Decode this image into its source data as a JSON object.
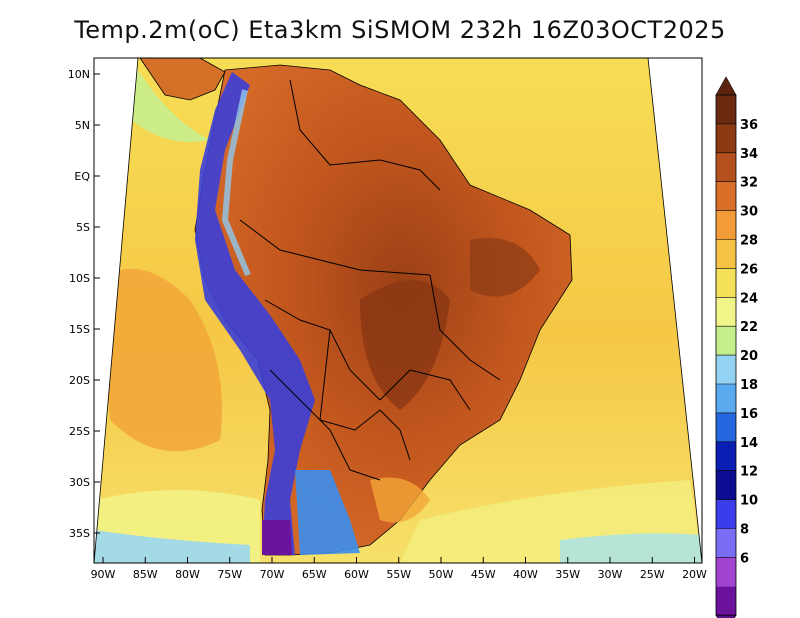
{
  "title": "Temp.2m(oC) Eta3km SiSMOM 232h 16Z03OCT2025",
  "variable": "2m temperature",
  "units": "oC",
  "lat_ticks": [
    {
      "label": "10N",
      "lat": 10
    },
    {
      "label": "5N",
      "lat": 5
    },
    {
      "label": "EQ",
      "lat": 0
    },
    {
      "label": "5S",
      "lat": -5
    },
    {
      "label": "10S",
      "lat": -10
    },
    {
      "label": "15S",
      "lat": -15
    },
    {
      "label": "20S",
      "lat": -20
    },
    {
      "label": "25S",
      "lat": -25
    },
    {
      "label": "30S",
      "lat": -30
    },
    {
      "label": "35S",
      "lat": -35
    }
  ],
  "lon_ticks": [
    {
      "label": "90W",
      "lon": -90
    },
    {
      "label": "85W",
      "lon": -85
    },
    {
      "label": "80W",
      "lon": -80
    },
    {
      "label": "75W",
      "lon": -75
    },
    {
      "label": "70W",
      "lon": -70
    },
    {
      "label": "65W",
      "lon": -65
    },
    {
      "label": "60W",
      "lon": -60
    },
    {
      "label": "55W",
      "lon": -55
    },
    {
      "label": "50W",
      "lon": -50
    },
    {
      "label": "45W",
      "lon": -45
    },
    {
      "label": "40W",
      "lon": -40
    },
    {
      "label": "35W",
      "lon": -35
    },
    {
      "label": "30W",
      "lon": -30
    },
    {
      "label": "25W",
      "lon": -25
    },
    {
      "label": "20W",
      "lon": -20
    }
  ],
  "colorbar": {
    "labels": [
      "36",
      "34",
      "32",
      "30",
      "28",
      "26",
      "24",
      "22",
      "20",
      "18",
      "16",
      "14",
      "12",
      "10",
      "8",
      "6"
    ],
    "colors_top_to_bottom": [
      "#6b2a10",
      "#8c3a14",
      "#b3501d",
      "#d9702a",
      "#f29b37",
      "#f5c243",
      "#f6e25a",
      "#f2f58a",
      "#c4ef8c",
      "#93d2f2",
      "#5aaaf0",
      "#2567e0",
      "#0a1eb4",
      "#0b0d93",
      "#3c3dea",
      "#7a6cf5",
      "#a244d2",
      "#6c119c"
    ],
    "labels_hidden": []
  },
  "colors": {
    "ocean_warm": "#f4c24a",
    "ocean_cool": "#f7e36a",
    "land_hot": "#c4581f",
    "land_very_hot": "#8a3714",
    "andes_cold": "#3b3fd8",
    "patagonia": "#3a8ef0"
  }
}
